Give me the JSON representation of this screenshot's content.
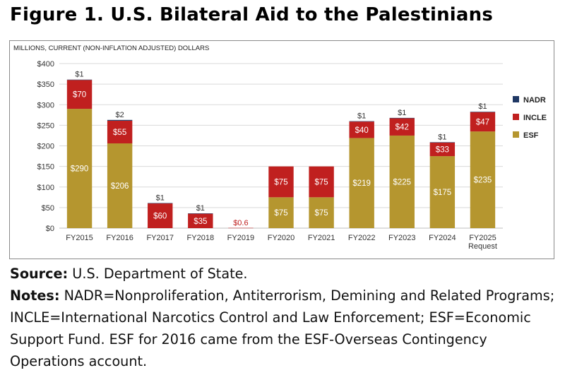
{
  "figure_title": "Figure 1. U.S. Bilateral Aid to the Palestinians",
  "source_label": "Source:",
  "source_text": "U.S. Department of State.",
  "notes_label": "Notes:",
  "notes_text": "NADR=Nonproliferation, Antiterrorism, Demining and Related Programs; INCLE=International Narcotics Control and Law Enforcement; ESF=Economic Support Fund. ESF for 2016 came from the ESF-Overseas Contingency Operations account.",
  "chart_data": {
    "type": "bar",
    "stacked": true,
    "ylabel": "MILLIONS, CURRENT (NON-INFLATION ADJUSTED) DOLLARS",
    "ylim": [
      0,
      400
    ],
    "yticks": [
      0,
      50,
      100,
      150,
      200,
      250,
      300,
      350,
      400
    ],
    "ytick_labels": [
      "$0",
      "$50",
      "$100",
      "$150",
      "$200",
      "$250",
      "$300",
      "$350",
      "$400"
    ],
    "grid": true,
    "legend_position": "right",
    "categories": [
      "FY2015",
      "FY2016",
      "FY2017",
      "FY2018",
      "FY2019",
      "FY2020",
      "FY2021",
      "FY2022",
      "FY2023",
      "FY2024",
      "FY2025\nRequest"
    ],
    "series": [
      {
        "name": "ESF",
        "color": "#b5962f",
        "values": [
          290,
          206,
          0,
          0,
          0,
          75,
          75,
          219,
          225,
          175,
          235
        ],
        "labels": [
          "$290",
          "$206",
          "",
          "",
          "",
          "$75",
          "$75",
          "$219",
          "$225",
          "$175",
          "$235"
        ]
      },
      {
        "name": "INCLE",
        "color": "#c0201f",
        "values": [
          70,
          55,
          60,
          35,
          0.6,
          75,
          75,
          40,
          42,
          33,
          47
        ],
        "labels": [
          "$70",
          "$55",
          "$60",
          "$35",
          "$0.6",
          "$75",
          "$75",
          "$40",
          "$42",
          "$33",
          "$47"
        ]
      },
      {
        "name": "NADR",
        "color": "#1f3864",
        "values": [
          1,
          2,
          1,
          1,
          0,
          0,
          0,
          1,
          1,
          1,
          1
        ],
        "labels": [
          "$1",
          "$2",
          "$1",
          "$1",
          "",
          "",
          "",
          "$1",
          "$1",
          "$1",
          "$1"
        ]
      }
    ]
  }
}
